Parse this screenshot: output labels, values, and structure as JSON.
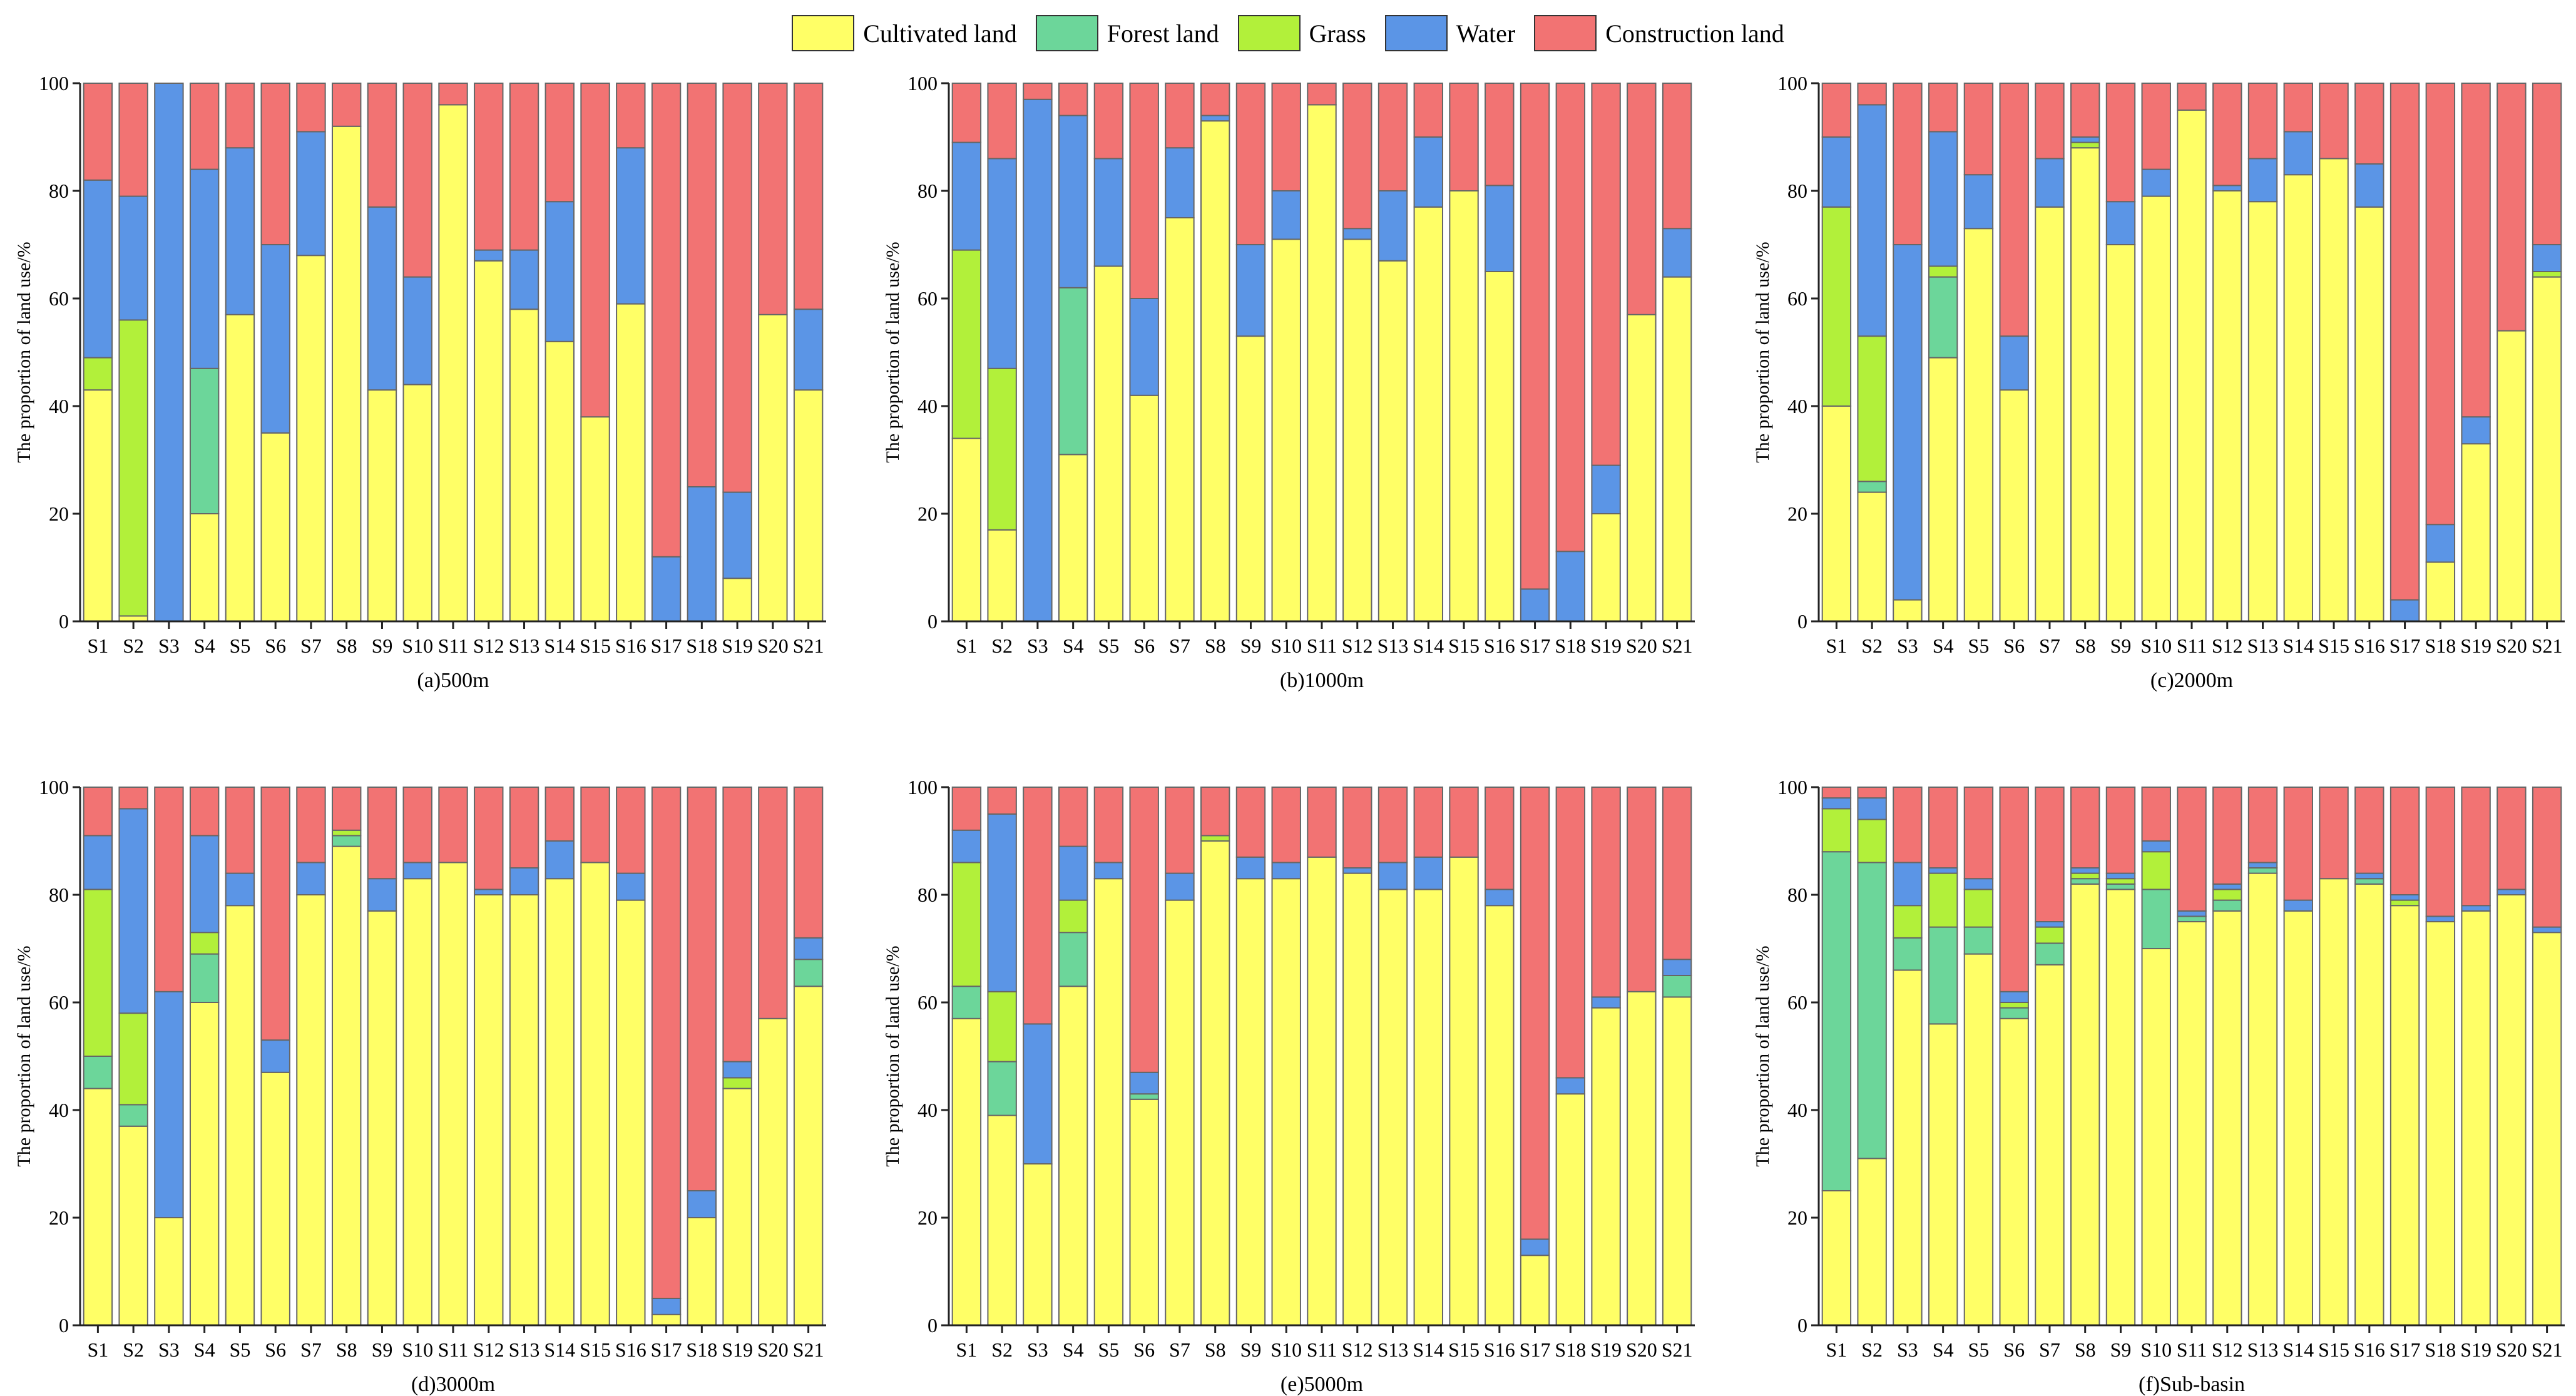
{
  "legend": {
    "items": [
      {
        "label": "Cultivated land",
        "color": "#FFFF66"
      },
      {
        "label": "Forest land",
        "color": "#6CD69A"
      },
      {
        "label": "Grass",
        "color": "#B2F03A"
      },
      {
        "label": "Water",
        "color": "#5B95E6"
      },
      {
        "label": "Construction land",
        "color": "#F27373"
      }
    ]
  },
  "chart_data": [
    {
      "type": "bar",
      "stacked": true,
      "title": "(a)500m",
      "ylabel": "The  proportion of land use/%",
      "ylim": [
        0,
        100
      ],
      "yticks": [
        0,
        20,
        40,
        60,
        80,
        100
      ],
      "categories": [
        "S1",
        "S2",
        "S3",
        "S4",
        "S5",
        "S6",
        "S7",
        "S8",
        "S9",
        "S10",
        "S11",
        "S12",
        "S13",
        "S14",
        "S15",
        "S16",
        "S17",
        "S18",
        "S19",
        "S20",
        "S21"
      ],
      "series": [
        {
          "name": "Cultivated land",
          "values": [
            43,
            1,
            0,
            20,
            57,
            35,
            68,
            92,
            43,
            44,
            96,
            67,
            58,
            52,
            38,
            59,
            0,
            0,
            8,
            57,
            43
          ]
        },
        {
          "name": "Forest land",
          "values": [
            0,
            0,
            0,
            27,
            0,
            0,
            0,
            0,
            0,
            0,
            0,
            0,
            0,
            0,
            0,
            0,
            0,
            0,
            0,
            0,
            0
          ]
        },
        {
          "name": "Grass",
          "values": [
            6,
            55,
            0,
            0,
            0,
            0,
            0,
            0,
            0,
            0,
            0,
            0,
            0,
            0,
            0,
            0,
            0,
            0,
            0,
            0,
            0
          ]
        },
        {
          "name": "Water",
          "values": [
            33,
            23,
            100,
            37,
            31,
            35,
            23,
            0,
            34,
            20,
            0,
            2,
            11,
            26,
            0,
            29,
            12,
            25,
            16,
            0,
            15
          ]
        },
        {
          "name": "Construction land",
          "values": [
            18,
            21,
            0,
            16,
            12,
            30,
            9,
            8,
            23,
            36,
            4,
            31,
            31,
            22,
            62,
            12,
            88,
            75,
            76,
            43,
            42
          ]
        }
      ]
    },
    {
      "type": "bar",
      "stacked": true,
      "title": "(b)1000m",
      "ylabel": "The  proportion of land use/%",
      "ylim": [
        0,
        100
      ],
      "yticks": [
        0,
        20,
        40,
        60,
        80,
        100
      ],
      "categories": [
        "S1",
        "S2",
        "S3",
        "S4",
        "S5",
        "S6",
        "S7",
        "S8",
        "S9",
        "S10",
        "S11",
        "S12",
        "S13",
        "S14",
        "S15",
        "S16",
        "S17",
        "S18",
        "S19",
        "S20",
        "S21"
      ],
      "series": [
        {
          "name": "Cultivated land",
          "values": [
            34,
            17,
            0,
            31,
            66,
            42,
            75,
            93,
            53,
            71,
            96,
            71,
            67,
            77,
            80,
            65,
            0,
            0,
            20,
            57,
            64
          ]
        },
        {
          "name": "Forest land",
          "values": [
            0,
            0,
            0,
            31,
            0,
            0,
            0,
            0,
            0,
            0,
            0,
            0,
            0,
            0,
            0,
            0,
            0,
            0,
            0,
            0,
            0
          ]
        },
        {
          "name": "Grass",
          "values": [
            35,
            30,
            0,
            0,
            0,
            0,
            0,
            0,
            0,
            0,
            0,
            0,
            0,
            0,
            0,
            0,
            0,
            0,
            0,
            0,
            0
          ]
        },
        {
          "name": "Water",
          "values": [
            20,
            39,
            97,
            32,
            20,
            18,
            13,
            1,
            17,
            9,
            0,
            2,
            13,
            13,
            0,
            16,
            6,
            13,
            9,
            0,
            9
          ]
        },
        {
          "name": "Construction land",
          "values": [
            11,
            14,
            3,
            6,
            14,
            40,
            12,
            6,
            30,
            20,
            4,
            27,
            20,
            10,
            20,
            19,
            94,
            87,
            71,
            43,
            27
          ]
        }
      ]
    },
    {
      "type": "bar",
      "stacked": true,
      "title": "(c)2000m",
      "ylabel": "The  proportion of land use/%",
      "ylim": [
        0,
        100
      ],
      "yticks": [
        0,
        20,
        40,
        60,
        80,
        100
      ],
      "categories": [
        "S1",
        "S2",
        "S3",
        "S4",
        "S5",
        "S6",
        "S7",
        "S8",
        "S9",
        "S10",
        "S11",
        "S12",
        "S13",
        "S14",
        "S15",
        "S16",
        "S17",
        "S18",
        "S19",
        "S20",
        "S21"
      ],
      "series": [
        {
          "name": "Cultivated land",
          "values": [
            40,
            24,
            4,
            49,
            73,
            43,
            77,
            88,
            70,
            79,
            95,
            80,
            78,
            83,
            86,
            77,
            0,
            11,
            33,
            54,
            64
          ]
        },
        {
          "name": "Forest land",
          "values": [
            0,
            2,
            0,
            15,
            0,
            0,
            0,
            0,
            0,
            0,
            0,
            0,
            0,
            0,
            0,
            0,
            0,
            0,
            0,
            0,
            0
          ]
        },
        {
          "name": "Grass",
          "values": [
            37,
            27,
            0,
            2,
            0,
            0,
            0,
            1,
            0,
            0,
            0,
            0,
            0,
            0,
            0,
            0,
            0,
            0,
            0,
            0,
            1
          ]
        },
        {
          "name": "Water",
          "values": [
            13,
            43,
            66,
            25,
            10,
            10,
            9,
            1,
            8,
            5,
            0,
            1,
            8,
            8,
            0,
            8,
            4,
            7,
            5,
            0,
            5
          ]
        },
        {
          "name": "Construction land",
          "values": [
            10,
            4,
            30,
            9,
            17,
            47,
            14,
            10,
            22,
            16,
            5,
            19,
            14,
            9,
            14,
            15,
            96,
            82,
            62,
            46,
            30
          ]
        }
      ]
    },
    {
      "type": "bar",
      "stacked": true,
      "title": "(d)3000m",
      "ylabel": "The  proportion of land use/%",
      "ylim": [
        0,
        100
      ],
      "yticks": [
        0,
        20,
        40,
        60,
        80,
        100
      ],
      "categories": [
        "S1",
        "S2",
        "S3",
        "S4",
        "S5",
        "S6",
        "S7",
        "S8",
        "S9",
        "S10",
        "S11",
        "S12",
        "S13",
        "S14",
        "S15",
        "S16",
        "S17",
        "S18",
        "S19",
        "S20",
        "S21"
      ],
      "series": [
        {
          "name": "Cultivated land",
          "values": [
            44,
            37,
            20,
            60,
            78,
            47,
            80,
            89,
            77,
            83,
            86,
            80,
            80,
            83,
            86,
            79,
            2,
            20,
            44,
            57,
            63
          ]
        },
        {
          "name": "Forest land",
          "values": [
            6,
            4,
            0,
            9,
            0,
            0,
            0,
            2,
            0,
            0,
            0,
            0,
            0,
            0,
            0,
            0,
            0,
            0,
            0,
            0,
            5
          ]
        },
        {
          "name": "Grass",
          "values": [
            31,
            17,
            0,
            4,
            0,
            0,
            0,
            1,
            0,
            0,
            0,
            0,
            0,
            0,
            0,
            0,
            0,
            0,
            2,
            0,
            0
          ]
        },
        {
          "name": "Water",
          "values": [
            10,
            38,
            42,
            18,
            6,
            6,
            6,
            0,
            6,
            3,
            0,
            1,
            5,
            7,
            0,
            5,
            3,
            5,
            3,
            0,
            4
          ]
        },
        {
          "name": "Construction land",
          "values": [
            9,
            4,
            38,
            9,
            16,
            47,
            14,
            8,
            17,
            14,
            14,
            19,
            15,
            10,
            14,
            16,
            95,
            75,
            51,
            43,
            28
          ]
        }
      ]
    },
    {
      "type": "bar",
      "stacked": true,
      "title": "(e)5000m",
      "ylabel": "The  proportion of land use/%",
      "ylim": [
        0,
        100
      ],
      "yticks": [
        0,
        20,
        40,
        60,
        80,
        100
      ],
      "categories": [
        "S1",
        "S2",
        "S3",
        "S4",
        "S5",
        "S6",
        "S7",
        "S8",
        "S9",
        "S10",
        "S11",
        "S12",
        "S13",
        "S14",
        "S15",
        "S16",
        "S17",
        "S18",
        "S19",
        "S20",
        "S21"
      ],
      "series": [
        {
          "name": "Cultivated land",
          "values": [
            57,
            39,
            30,
            63,
            83,
            42,
            79,
            90,
            83,
            83,
            87,
            84,
            81,
            81,
            87,
            78,
            13,
            43,
            59,
            62,
            61
          ]
        },
        {
          "name": "Forest land",
          "values": [
            6,
            10,
            0,
            10,
            0,
            1,
            0,
            0,
            0,
            0,
            0,
            0,
            0,
            0,
            0,
            0,
            0,
            0,
            0,
            0,
            4
          ]
        },
        {
          "name": "Grass",
          "values": [
            23,
            13,
            0,
            6,
            0,
            0,
            0,
            1,
            0,
            0,
            0,
            0,
            0,
            0,
            0,
            0,
            0,
            0,
            0,
            0,
            0
          ]
        },
        {
          "name": "Water",
          "values": [
            6,
            33,
            26,
            10,
            3,
            4,
            5,
            0,
            4,
            3,
            0,
            1,
            5,
            6,
            0,
            3,
            3,
            3,
            2,
            0,
            3
          ]
        },
        {
          "name": "Construction land",
          "values": [
            8,
            5,
            44,
            11,
            14,
            53,
            16,
            9,
            13,
            14,
            13,
            15,
            14,
            13,
            13,
            19,
            84,
            54,
            39,
            38,
            32
          ]
        }
      ]
    },
    {
      "type": "bar",
      "stacked": true,
      "title": "(f)Sub-basin",
      "ylabel": "The  proportion of land use/%",
      "ylim": [
        0,
        100
      ],
      "yticks": [
        0,
        20,
        40,
        60,
        80,
        100
      ],
      "categories": [
        "S1",
        "S2",
        "S3",
        "S4",
        "S5",
        "S6",
        "S7",
        "S8",
        "S9",
        "S10",
        "S11",
        "S12",
        "S13",
        "S14",
        "S15",
        "S16",
        "S17",
        "S18",
        "S19",
        "S20",
        "S21"
      ],
      "series": [
        {
          "name": "Cultivated land",
          "values": [
            25,
            31,
            66,
            56,
            69,
            57,
            67,
            82,
            81,
            70,
            75,
            77,
            84,
            77,
            83,
            82,
            78,
            75,
            77,
            80,
            73
          ]
        },
        {
          "name": "Forest land",
          "values": [
            63,
            55,
            6,
            18,
            5,
            2,
            4,
            1,
            1,
            11,
            1,
            2,
            1,
            0,
            0,
            1,
            0,
            0,
            0,
            0,
            0
          ]
        },
        {
          "name": "Grass",
          "values": [
            8,
            8,
            6,
            10,
            7,
            1,
            3,
            1,
            1,
            7,
            0,
            2,
            0,
            0,
            0,
            0,
            1,
            0,
            0,
            0,
            0
          ]
        },
        {
          "name": "Water",
          "values": [
            2,
            4,
            8,
            1,
            2,
            2,
            1,
            1,
            1,
            2,
            1,
            1,
            1,
            2,
            0,
            1,
            1,
            1,
            1,
            1,
            1
          ]
        },
        {
          "name": "Construction land",
          "values": [
            2,
            2,
            14,
            15,
            17,
            38,
            25,
            15,
            16,
            10,
            23,
            18,
            14,
            21,
            17,
            16,
            20,
            24,
            22,
            19,
            26
          ]
        }
      ]
    }
  ]
}
